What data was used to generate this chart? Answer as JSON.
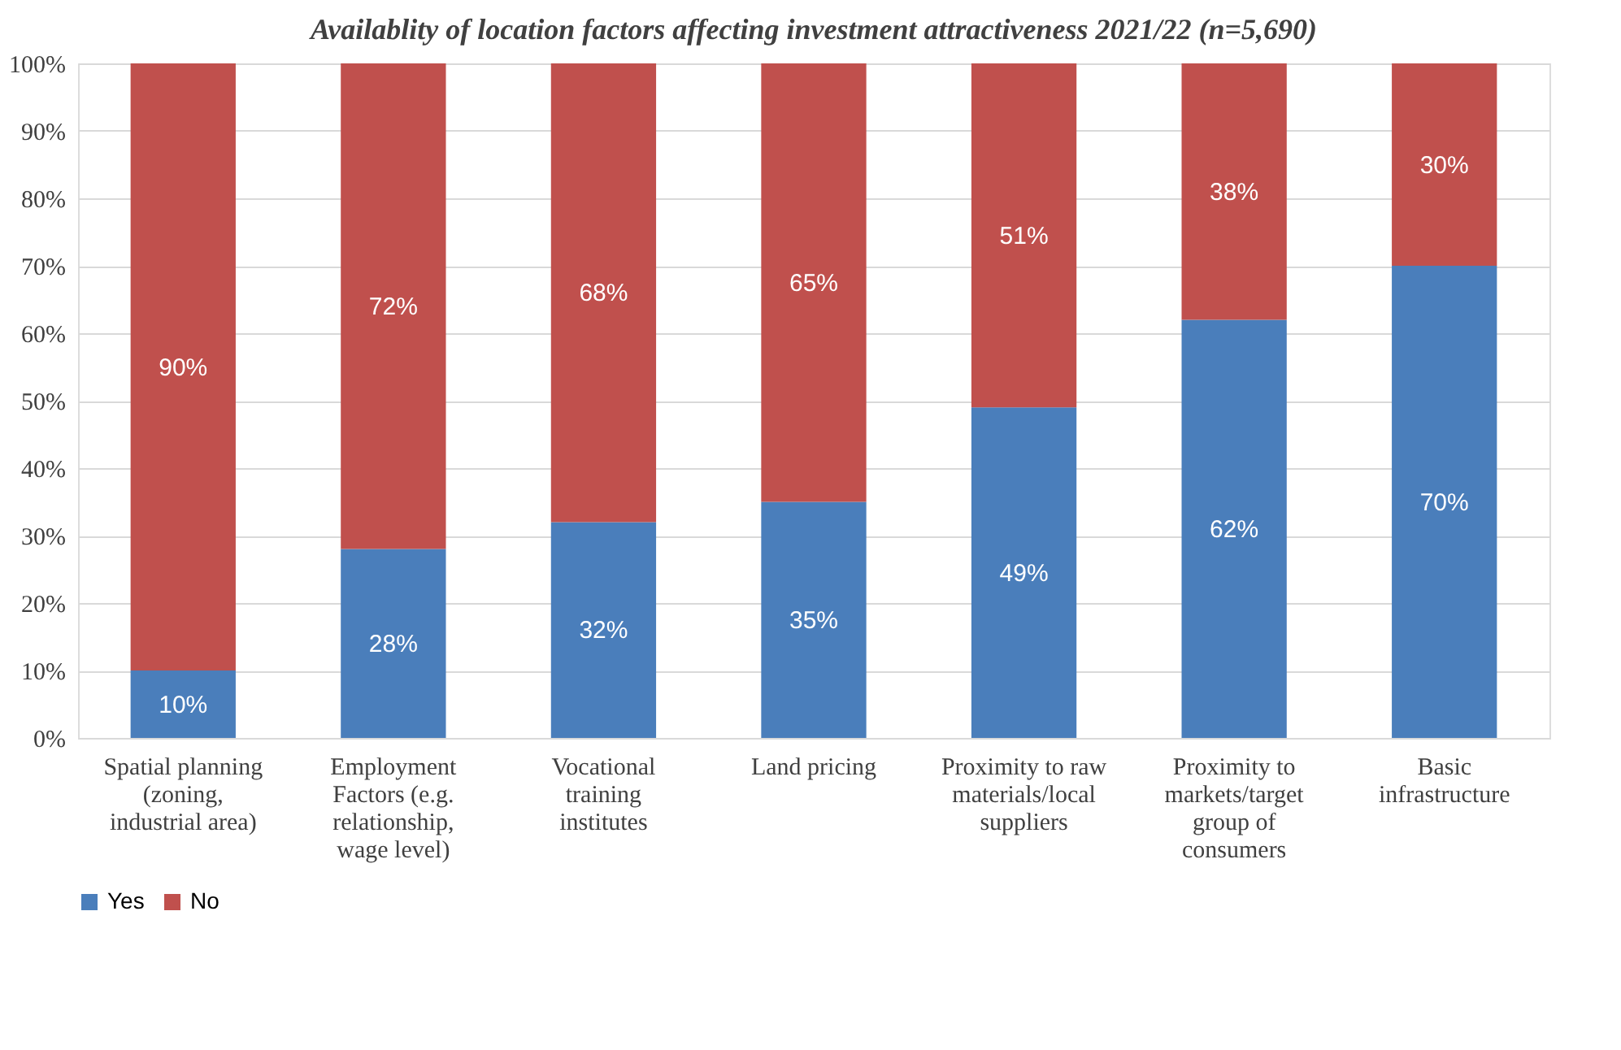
{
  "chart_data": {
    "type": "bar",
    "title": "Availablity of location factors affecting investment attractiveness 2021/22 (n=5,690)",
    "categories": [
      "Spatial planning (zoning, industrial area)",
      "Employment Factors (e.g. relationship, wage level)",
      "Vocational training institutes",
      "Land pricing",
      "Proximity to raw materials/local suppliers",
      "Proximity to markets/target group of consumers",
      "Basic infrastructure"
    ],
    "stacked": true,
    "series": [
      {
        "name": "Yes",
        "color": "#4a7ebb",
        "values": [
          10,
          28,
          32,
          35,
          49,
          62,
          70
        ],
        "value_labels": [
          "10%",
          "28%",
          "32%",
          "35%",
          "49%",
          "62%",
          "70%"
        ]
      },
      {
        "name": "No",
        "color": "#c0504d",
        "values": [
          90,
          72,
          68,
          65,
          51,
          38,
          30
        ],
        "value_labels": [
          "90%",
          "72%",
          "68%",
          "65%",
          "51%",
          "38%",
          "30%"
        ]
      }
    ],
    "ylim": [
      0,
      100
    ],
    "yticks": [
      {
        "value": 0,
        "label": "0%"
      },
      {
        "value": 10,
        "label": "10%"
      },
      {
        "value": 20,
        "label": "20%"
      },
      {
        "value": 30,
        "label": "30%"
      },
      {
        "value": 40,
        "label": "40%"
      },
      {
        "value": 50,
        "label": "50%"
      },
      {
        "value": 60,
        "label": "60%"
      },
      {
        "value": 70,
        "label": "70%"
      },
      {
        "value": 80,
        "label": "80%"
      },
      {
        "value": 90,
        "label": "90%"
      },
      {
        "value": 100,
        "label": "100%"
      }
    ],
    "grid": "y",
    "legend": "bottom"
  }
}
